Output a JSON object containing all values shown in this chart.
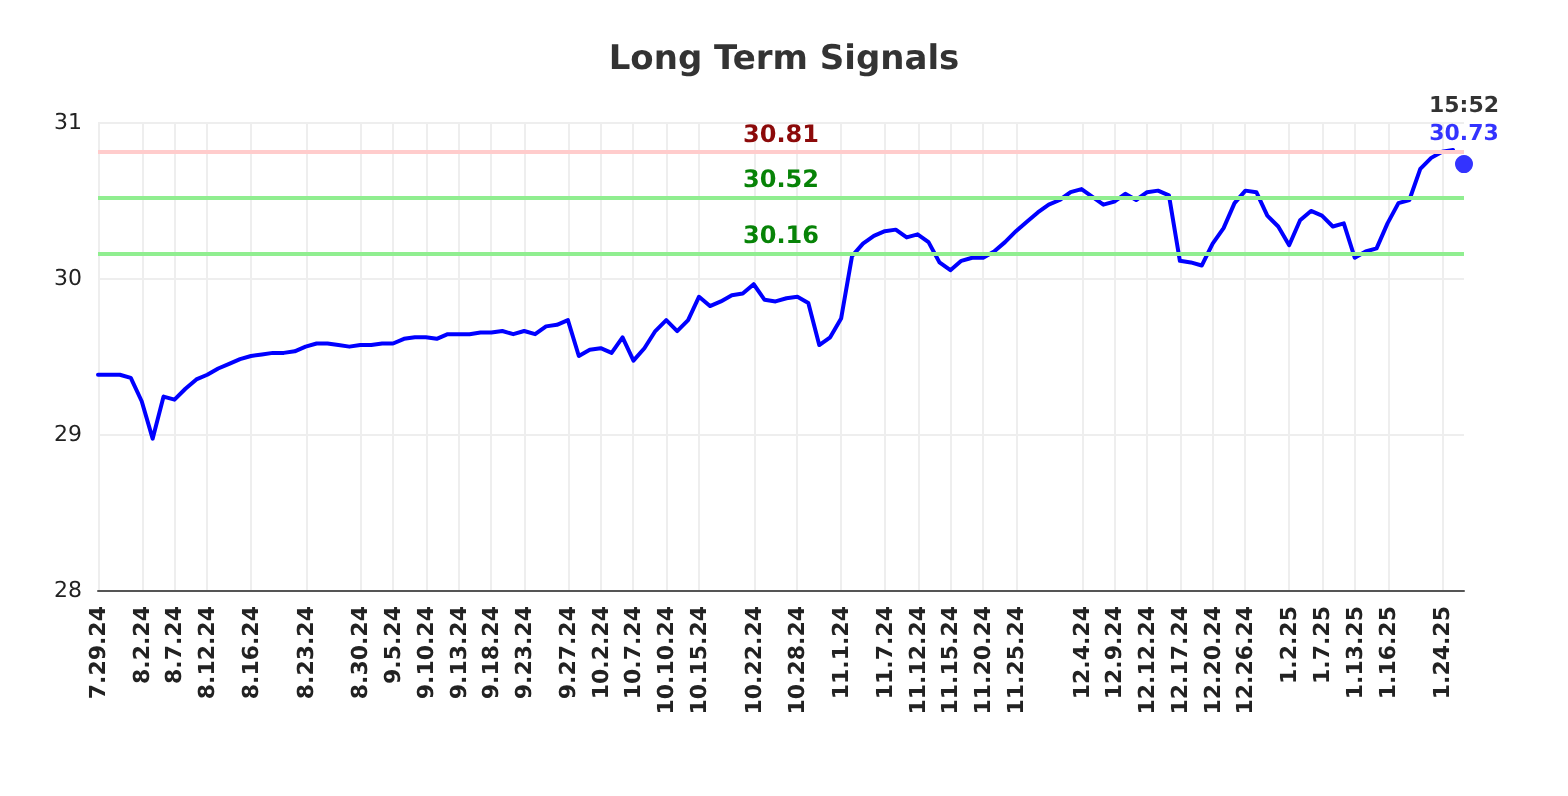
{
  "chart_data": {
    "type": "line",
    "title": "Long Term Signals",
    "categories": [
      "7.29.24",
      null,
      null,
      null,
      "8.2.24",
      null,
      null,
      "8.7.24",
      null,
      null,
      "8.12.24",
      null,
      null,
      null,
      "8.16.24",
      null,
      null,
      null,
      null,
      "8.23.24",
      null,
      null,
      null,
      null,
      "8.30.24",
      null,
      null,
      "9.5.24",
      null,
      null,
      "9.10.24",
      null,
      null,
      "9.13.24",
      null,
      null,
      "9.18.24",
      null,
      null,
      "9.23.24",
      null,
      null,
      null,
      "9.27.24",
      null,
      null,
      "10.2.24",
      null,
      null,
      "10.7.24",
      null,
      null,
      "10.10.24",
      null,
      null,
      "10.15.24",
      null,
      null,
      null,
      null,
      "10.22.24",
      null,
      null,
      null,
      "10.28.24",
      null,
      null,
      null,
      "11.1.24",
      null,
      null,
      null,
      "11.7.24",
      null,
      null,
      "11.12.24",
      null,
      null,
      "11.15.24",
      null,
      null,
      "11.20.24",
      null,
      null,
      "11.25.24",
      null,
      null,
      null,
      null,
      null,
      "12.4.24",
      null,
      null,
      "12.9.24",
      null,
      null,
      "12.12.24",
      null,
      null,
      "12.17.24",
      null,
      null,
      "12.20.24",
      null,
      null,
      "12.26.24",
      null,
      null,
      null,
      "1.2.25",
      null,
      null,
      "1.7.25",
      null,
      null,
      "1.13.25",
      null,
      null,
      "1.16.25",
      null,
      null,
      null,
      null,
      "1.24.25",
      null,
      null
    ],
    "series": [
      {
        "color": "#0000ff",
        "values": [
          29.38,
          29.38,
          29.38,
          29.36,
          29.21,
          28.97,
          29.24,
          29.22,
          29.29,
          29.35,
          29.38,
          29.42,
          29.45,
          29.48,
          29.5,
          29.51,
          29.52,
          29.52,
          29.53,
          29.56,
          29.58,
          29.58,
          29.57,
          29.56,
          29.57,
          29.57,
          29.58,
          29.58,
          29.61,
          29.62,
          29.62,
          29.61,
          29.64,
          29.64,
          29.64,
          29.65,
          29.65,
          29.66,
          29.64,
          29.66,
          29.64,
          29.69,
          29.7,
          29.73,
          29.5,
          29.54,
          29.55,
          29.52,
          29.62,
          29.47,
          29.55,
          29.66,
          29.73,
          29.66,
          29.73,
          29.88,
          29.82,
          29.85,
          29.89,
          29.9,
          29.96,
          29.86,
          29.85,
          29.87,
          29.88,
          29.84,
          29.57,
          29.62,
          29.74,
          30.14,
          30.22,
          30.27,
          30.3,
          30.31,
          30.26,
          30.28,
          30.23,
          30.1,
          30.05,
          30.11,
          30.13,
          30.13,
          30.17,
          30.23,
          30.3,
          30.36,
          30.42,
          30.47,
          30.5,
          30.55,
          30.57,
          30.52,
          30.47,
          30.49,
          30.54,
          30.5,
          30.55,
          30.56,
          30.53,
          30.11,
          30.1,
          30.08,
          30.22,
          30.32,
          30.48,
          30.56,
          30.55,
          30.4,
          30.33,
          30.21,
          30.37,
          30.43,
          30.4,
          30.33,
          30.35,
          30.13,
          30.17,
          30.19,
          30.35,
          30.48,
          30.5,
          30.7,
          30.77,
          30.81,
          30.82,
          null
        ]
      },
      {
        "type": "scatter",
        "color": "#0000ff",
        "marker": "circle",
        "values": [
          null,
          null,
          null,
          null,
          null,
          null,
          null,
          null,
          null,
          null,
          null,
          null,
          null,
          null,
          null,
          null,
          null,
          null,
          null,
          null,
          null,
          null,
          null,
          null,
          null,
          null,
          null,
          null,
          null,
          null,
          null,
          null,
          null,
          null,
          null,
          null,
          null,
          null,
          null,
          null,
          null,
          null,
          null,
          null,
          null,
          null,
          null,
          null,
          null,
          null,
          null,
          null,
          null,
          null,
          null,
          null,
          null,
          null,
          null,
          null,
          null,
          null,
          null,
          null,
          null,
          null,
          null,
          null,
          null,
          null,
          null,
          null,
          null,
          null,
          null,
          null,
          null,
          null,
          null,
          null,
          null,
          null,
          null,
          null,
          null,
          null,
          null,
          null,
          null,
          null,
          null,
          null,
          null,
          null,
          null,
          null,
          null,
          null,
          null,
          null,
          null,
          null,
          null,
          null,
          null,
          null,
          null,
          null,
          null,
          null,
          null,
          null,
          null,
          null,
          null,
          null,
          null,
          null,
          null,
          null,
          null,
          null,
          null,
          null,
          null,
          30.73
        ],
        "value_labels": [
          null,
          null,
          null,
          null,
          null,
          null,
          null,
          null,
          null,
          null,
          null,
          null,
          null,
          null,
          null,
          null,
          null,
          null,
          null,
          null,
          null,
          null,
          null,
          null,
          null,
          null,
          null,
          null,
          null,
          null,
          null,
          null,
          null,
          null,
          null,
          null,
          null,
          null,
          null,
          null,
          null,
          null,
          null,
          null,
          null,
          null,
          null,
          null,
          null,
          null,
          null,
          null,
          null,
          null,
          null,
          null,
          null,
          null,
          null,
          null,
          null,
          null,
          null,
          null,
          null,
          null,
          null,
          null,
          null,
          null,
          null,
          null,
          null,
          null,
          null,
          null,
          null,
          null,
          null,
          null,
          null,
          null,
          null,
          null,
          null,
          null,
          null,
          null,
          null,
          null,
          null,
          null,
          null,
          null,
          null,
          null,
          null,
          null,
          null,
          null,
          null,
          null,
          null,
          null,
          null,
          null,
          null,
          null,
          null,
          null,
          null,
          null,
          null,
          null,
          null,
          null,
          null,
          null,
          null,
          null,
          null,
          null,
          null,
          null,
          null,
          "30.73"
        ]
      }
    ],
    "annotations": [
      "15:52"
    ],
    "ref_lines": [
      {
        "axis": "y",
        "value": 30.81,
        "label": "30.81",
        "color": "#ffcccc"
      },
      {
        "axis": "y",
        "value": 30.52,
        "label": "30.52",
        "color": "#90ee90"
      },
      {
        "axis": "y",
        "value": 30.16,
        "label": "30.16",
        "color": "#90ee90"
      }
    ],
    "ylim": [
      28,
      31
    ],
    "yticks": [
      28,
      29,
      30,
      31
    ],
    "grid": true,
    "marker": "none",
    "line_style": "solid"
  }
}
